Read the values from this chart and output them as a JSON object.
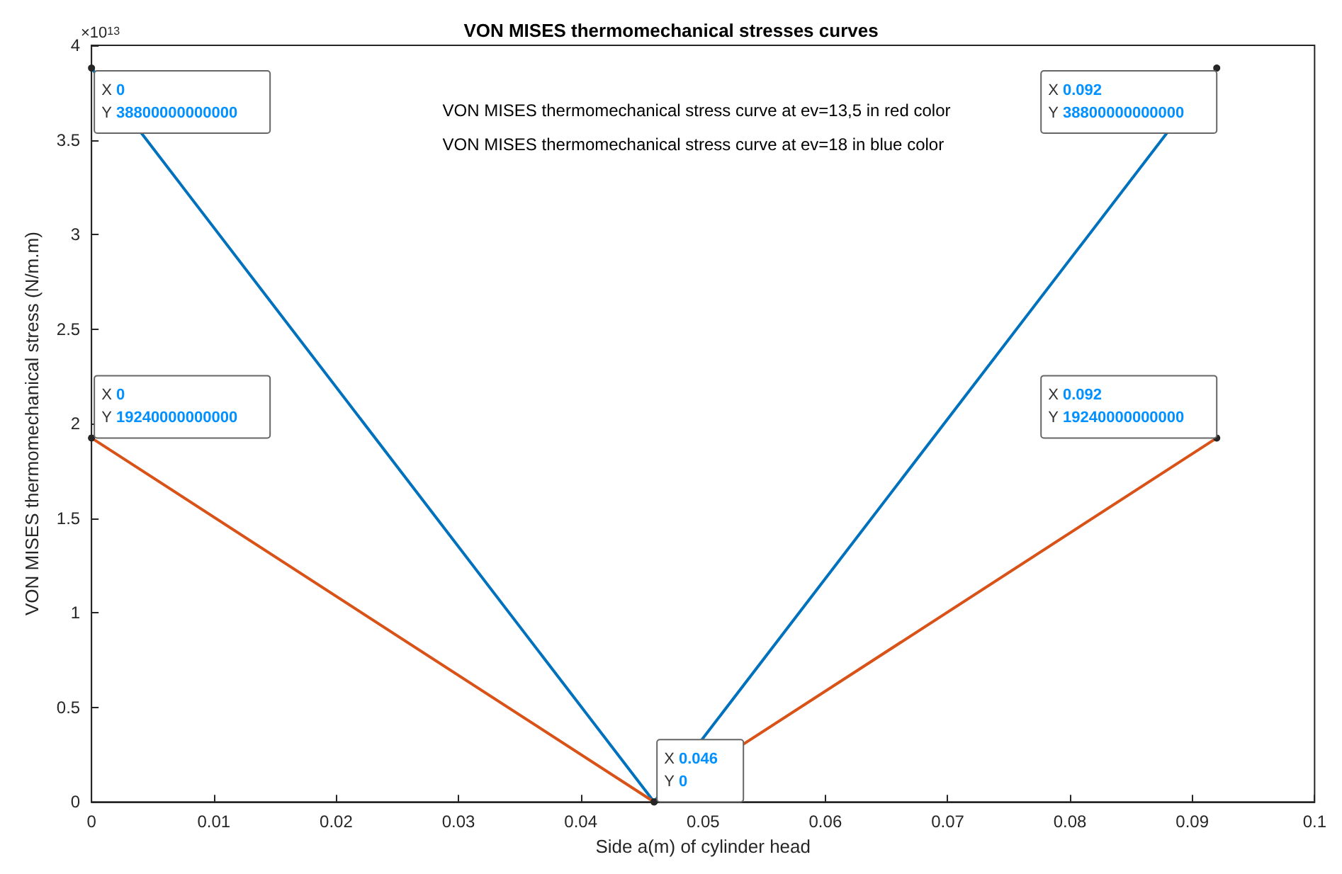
{
  "chart_data": {
    "type": "line",
    "title": "VON MISES thermomechanical stresses curves",
    "xlabel": "Side a(m) of cylinder head",
    "ylabel": "VON MISES thermomechanical stress (N/m.m)",
    "x": [
      0,
      0.046,
      0.092
    ],
    "series": [
      {
        "color": "#0072bd",
        "values": [
          3.88,
          0,
          3.88
        ]
      },
      {
        "color": "#d95319",
        "values": [
          1.924,
          0,
          1.924
        ]
      }
    ],
    "xlim": [
      0,
      0.1
    ],
    "xticks": [
      0,
      0.01,
      0.02,
      0.03,
      0.04,
      0.05,
      0.06,
      0.07,
      0.08,
      0.09,
      0.1
    ],
    "ylim": [
      0,
      4
    ],
    "yticks": [
      0,
      0.5,
      1,
      1.5,
      2,
      2.5,
      3,
      3.5,
      4
    ],
    "grid": false,
    "marker": "circle",
    "annotations": [
      "×10$^{13}$",
      "VON MISES thermomechanical stress curve at ev=13,5 in red color",
      "VON MISES thermomechanical stress curve at ev=18 in blue color",
      {
        "text": "X 0\nY 38800000000000",
        "x": 0,
        "y": 3.88
      },
      {
        "text": "X 0.092\nY 38800000000000",
        "x": 0.092,
        "y": 3.88
      },
      {
        "text": "X 0\nY 19240000000000",
        "x": 0,
        "y": 1.924
      },
      {
        "text": "X 0.092\nY 19240000000000",
        "x": 0.092,
        "y": 1.924
      },
      {
        "text": "X 0.046\nY 0",
        "x": 0.046,
        "y": 0
      }
    ]
  }
}
